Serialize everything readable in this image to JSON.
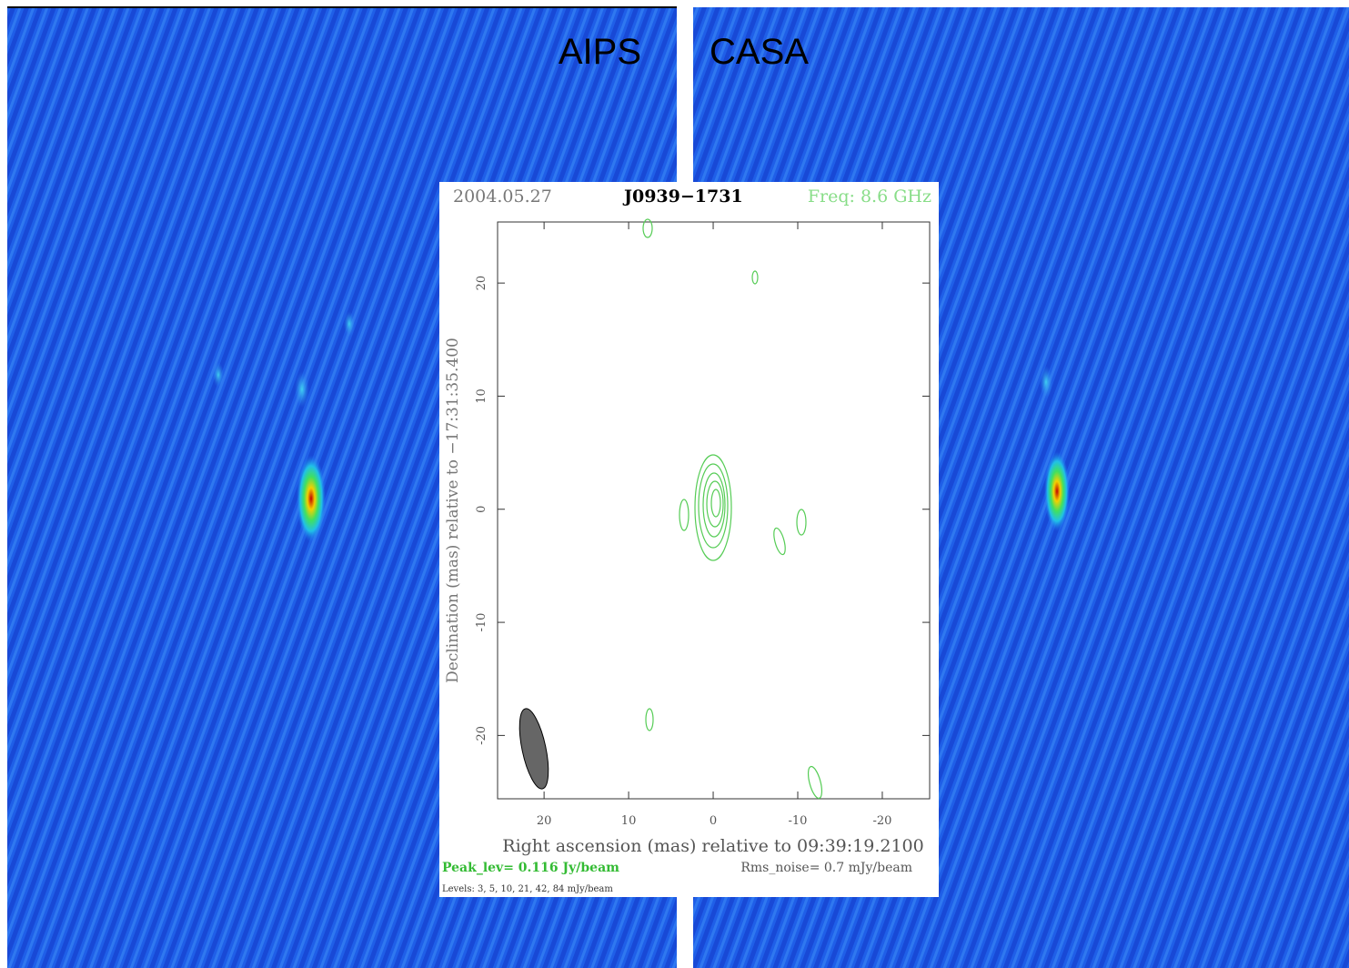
{
  "panels": {
    "left_label": "AIPS",
    "right_label": "CASA"
  },
  "plot": {
    "date": "2004.05.27",
    "source": "J0939−1731",
    "freq": "Freq: 8.6 GHz",
    "xlabel": "Right ascension (mas) relative to 09:39:19.2100",
    "ylabel": "Declination (mas) relative to −17:31:35.400",
    "xlim": [
      25.5,
      -25.6
    ],
    "ylim": [
      -25.6,
      25.4
    ],
    "xticks": [
      20,
      10,
      0,
      -10,
      -20
    ],
    "yticks": [
      -20,
      -10,
      0,
      10,
      20
    ],
    "peak": "Peak_lev=  0.116 Jy/beam",
    "rms": "Rms_noise=  0.7 mJy/beam",
    "levels": "Levels:  3,  5,  10,  21,  42,  84 mJy/beam"
  }
}
